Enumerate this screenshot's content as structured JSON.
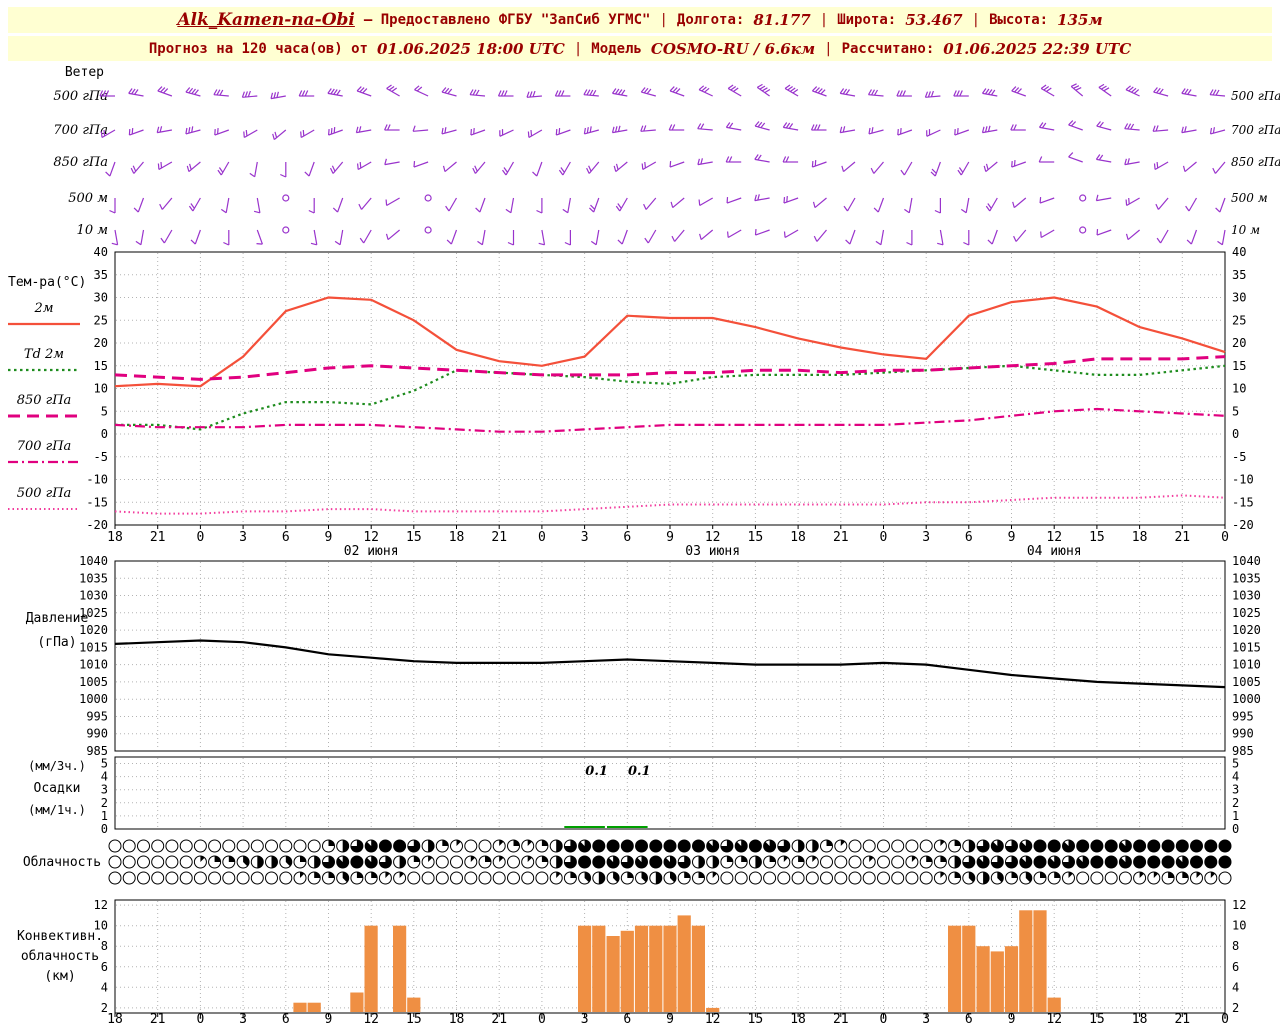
{
  "header": {
    "line1": {
      "station": "Alk_Kamen-na-Obi",
      "provider": "— Предоставлено ФГБУ \"ЗапСиб УГМС\"",
      "sep": "|",
      "lon_label": "Долгота:",
      "lon_value": "81.177",
      "lat_label": "Широта:",
      "lat_value": "53.467",
      "alt_label": "Высота:",
      "alt_value": "135м"
    },
    "line2": {
      "forecast_label": "Прогноз на 120 часа(ов) от",
      "forecast_value": "01.06.2025 18:00 UTC",
      "model_label": "Модель",
      "model_value": "COSMO-RU / 6.6км",
      "calc_label": "Рассчитано:",
      "calc_value": "01.06.2025 22:39 UTC"
    }
  },
  "axis": {
    "time_ticks": [
      "18",
      "21",
      "0",
      "3",
      "6",
      "9",
      "12",
      "15",
      "18",
      "21",
      "0",
      "3",
      "6",
      "9",
      "12",
      "15",
      "18",
      "21",
      "0",
      "3",
      "6",
      "9",
      "12",
      "15",
      "18",
      "21",
      "0"
    ],
    "date_labels": [
      {
        "text": "02 июня",
        "tick": 6
      },
      {
        "text": "03 июня",
        "tick": 14
      },
      {
        "text": "04 июня",
        "tick": 22
      }
    ]
  },
  "chart_data": [
    {
      "id": "wind",
      "type": "wind-barbs",
      "title": "Ветер",
      "color": "#9933cc",
      "series": [
        {
          "level": "500 гПа",
          "dir": [
            270,
            280,
            290,
            285,
            275,
            265,
            260,
            270,
            280,
            290,
            300,
            295,
            285,
            275,
            270,
            265,
            270,
            275,
            280,
            285,
            290,
            295,
            300,
            305,
            300,
            290,
            280,
            275,
            270,
            265,
            270,
            280,
            290,
            300,
            310,
            305,
            295,
            285,
            280,
            275
          ],
          "speed": [
            10,
            12,
            12,
            14,
            12,
            10,
            10,
            12,
            14,
            12,
            10,
            8,
            10,
            12,
            12,
            10,
            12,
            14,
            14,
            12,
            10,
            12,
            12,
            14,
            16,
            14,
            12,
            10,
            10,
            12,
            12,
            14,
            12,
            10,
            10,
            12,
            14,
            12,
            10,
            10
          ]
        },
        {
          "level": "700 гПа",
          "dir": [
            240,
            250,
            260,
            255,
            250,
            240,
            230,
            240,
            250,
            260,
            270,
            265,
            255,
            250,
            245,
            240,
            250,
            255,
            260,
            265,
            270,
            275,
            280,
            285,
            280,
            270,
            260,
            255,
            250,
            245,
            250,
            260,
            270,
            280,
            290,
            285,
            275,
            265,
            260,
            255
          ],
          "speed": [
            6,
            8,
            8,
            10,
            8,
            6,
            6,
            8,
            10,
            8,
            6,
            4,
            6,
            8,
            8,
            6,
            8,
            10,
            10,
            8,
            6,
            8,
            8,
            10,
            12,
            10,
            8,
            6,
            6,
            8,
            8,
            10,
            8,
            6,
            6,
            8,
            10,
            8,
            6,
            6
          ]
        },
        {
          "level": "850 гПа",
          "dir": [
            200,
            220,
            240,
            230,
            210,
            190,
            180,
            200,
            220,
            240,
            260,
            250,
            230,
            220,
            210,
            200,
            210,
            220,
            230,
            240,
            250,
            260,
            270,
            280,
            270,
            250,
            230,
            220,
            210,
            200,
            210,
            230,
            250,
            270,
            290,
            280,
            260,
            240,
            230,
            220
          ],
          "speed": [
            4,
            6,
            6,
            8,
            6,
            4,
            2,
            4,
            6,
            6,
            4,
            2,
            4,
            6,
            6,
            4,
            6,
            8,
            8,
            6,
            4,
            6,
            6,
            8,
            8,
            6,
            4,
            4,
            4,
            6,
            6,
            8,
            6,
            4,
            4,
            6,
            8,
            6,
            4,
            4
          ]
        },
        {
          "level": "500 м",
          "dir": [
            180,
            200,
            220,
            210,
            190,
            170,
            160,
            180,
            200,
            220,
            240,
            230,
            210,
            200,
            190,
            180,
            190,
            200,
            210,
            220,
            230,
            240,
            250,
            260,
            250,
            230,
            210,
            200,
            190,
            180,
            190,
            210,
            230,
            250,
            270,
            260,
            240,
            220,
            210,
            200
          ],
          "speed": [
            2,
            4,
            4,
            6,
            4,
            2,
            0,
            2,
            4,
            4,
            2,
            0,
            2,
            4,
            4,
            2,
            4,
            6,
            6,
            4,
            2,
            4,
            4,
            6,
            6,
            4,
            2,
            2,
            2,
            4,
            4,
            6,
            4,
            2,
            0,
            4,
            6,
            4,
            2,
            2
          ]
        },
        {
          "level": "10 м",
          "dir": [
            170,
            190,
            210,
            200,
            180,
            160,
            150,
            170,
            190,
            210,
            230,
            220,
            200,
            190,
            180,
            170,
            180,
            190,
            200,
            210,
            220,
            230,
            240,
            250,
            240,
            220,
            200,
            190,
            180,
            170,
            180,
            200,
            220,
            240,
            260,
            250,
            230,
            210,
            200,
            190
          ],
          "speed": [
            1,
            2,
            3,
            4,
            3,
            1,
            0,
            1,
            3,
            3,
            2,
            0,
            1,
            3,
            3,
            2,
            3,
            4,
            4,
            3,
            1,
            3,
            3,
            4,
            4,
            3,
            1,
            1,
            1,
            3,
            3,
            4,
            3,
            1,
            0,
            3,
            4,
            3,
            1,
            1
          ]
        }
      ]
    },
    {
      "id": "temp",
      "type": "line",
      "title": "Тем-ра(°C)",
      "ylim": [
        -20,
        40
      ],
      "yticks": [
        -20,
        -15,
        -10,
        -5,
        0,
        5,
        10,
        15,
        20,
        25,
        30,
        35,
        40
      ],
      "x_hours_step": 3,
      "series": [
        {
          "name": "2м",
          "color": "#f4503a",
          "style": "solid",
          "values": [
            10.5,
            11,
            10.5,
            17,
            27,
            30,
            29.5,
            25,
            18.5,
            16,
            15,
            17,
            26,
            25.5,
            25.5,
            23.5,
            21,
            19,
            17.5,
            16.5,
            26,
            29,
            30,
            28,
            23.5,
            21,
            18
          ]
        },
        {
          "name": "Td 2м",
          "color": "#1e8c1e",
          "style": "dotted",
          "values": [
            2,
            2,
            1,
            4.5,
            7,
            7,
            6.5,
            9.5,
            14,
            13.5,
            13,
            12.5,
            11.5,
            11,
            12.5,
            13,
            13,
            13,
            13.5,
            14,
            14.5,
            15,
            14,
            13,
            13,
            14,
            15
          ]
        },
        {
          "name": "850 гПа",
          "color": "#e0007f",
          "style": "dashed",
          "values": [
            13,
            12.5,
            12,
            12.5,
            13.5,
            14.5,
            15,
            14.5,
            14,
            13.5,
            13,
            13,
            13,
            13.5,
            13.5,
            14,
            14,
            13.5,
            14,
            14,
            14.5,
            15,
            15.5,
            16.5,
            16.5,
            16.5,
            17
          ]
        },
        {
          "name": "700 гПа",
          "color": "#e0007f",
          "style": "dashdot",
          "values": [
            2,
            1.5,
            1.5,
            1.5,
            2,
            2,
            2,
            1.5,
            1,
            0.5,
            0.5,
            1,
            1.5,
            2,
            2,
            2,
            2,
            2,
            2,
            2.5,
            3,
            4,
            5,
            5.5,
            5,
            4.5,
            4
          ]
        },
        {
          "name": "500 гПа",
          "color": "#f23b9d",
          "style": "dotfine",
          "values": [
            -17,
            -17.5,
            -17.5,
            -17,
            -17,
            -16.5,
            -16.5,
            -17,
            -17,
            -17,
            -17,
            -16.5,
            -16,
            -15.5,
            -15.5,
            -15.5,
            -15.5,
            -15.5,
            -15.5,
            -15,
            -15,
            -14.5,
            -14,
            -14,
            -14,
            -13.5,
            -14
          ]
        }
      ]
    },
    {
      "id": "pressure",
      "type": "line",
      "title_lines": [
        "Давление",
        "(гПа)"
      ],
      "ylim": [
        985,
        1040
      ],
      "yticks": [
        985,
        990,
        995,
        1000,
        1005,
        1010,
        1015,
        1020,
        1025,
        1030,
        1035,
        1040
      ],
      "series": [
        {
          "name": "Давление",
          "color": "#000000",
          "style": "solid",
          "values": [
            1016,
            1016.5,
            1017,
            1016.5,
            1015,
            1013,
            1012,
            1011,
            1010.5,
            1010.5,
            1010.5,
            1011,
            1011.5,
            1011,
            1010.5,
            1010,
            1010,
            1010,
            1010.5,
            1010,
            1008.5,
            1007,
            1006,
            1005,
            1004.5,
            1004,
            1003.5
          ]
        }
      ]
    },
    {
      "id": "precip",
      "type": "bar",
      "left_labels": [
        "(мм/3ч.)",
        "Осадки",
        "(мм/1ч.)"
      ],
      "ylim": [
        0,
        5.5
      ],
      "yticks": [
        0,
        1,
        2,
        3,
        4,
        5
      ],
      "color": "#00a000",
      "values_3h": [
        0,
        0,
        0,
        0,
        0,
        0,
        0,
        0,
        0,
        0,
        0,
        0.1,
        0.1,
        0,
        0,
        0,
        0,
        0,
        0,
        0,
        0,
        0,
        0,
        0,
        0,
        0,
        0
      ],
      "annotations": [
        {
          "text": "0.1",
          "tick": 11
        },
        {
          "text": "0.1",
          "tick": 12
        }
      ]
    },
    {
      "id": "cloud",
      "type": "cloud-cover",
      "title": "Облачность",
      "rows": [
        {
          "name": "row1",
          "oktas": [
            0,
            0,
            0,
            0,
            0,
            0,
            0,
            0,
            0,
            0,
            0,
            0,
            0,
            0,
            0,
            2,
            4,
            6,
            7,
            8,
            8,
            6,
            4,
            2,
            1,
            0,
            0,
            1,
            2,
            1,
            2,
            4,
            6,
            7,
            8,
            8,
            8,
            8,
            8,
            8,
            8,
            8,
            7,
            6,
            7,
            8,
            7,
            6,
            4,
            4,
            2,
            1,
            0,
            0,
            0,
            0,
            0,
            0,
            1,
            2,
            4,
            6,
            7,
            6,
            7,
            8,
            8,
            7,
            8,
            8,
            8,
            7,
            8,
            8,
            8,
            8,
            8,
            8,
            8
          ]
        },
        {
          "name": "row2",
          "oktas": [
            0,
            0,
            0,
            0,
            0,
            0,
            1,
            2,
            2,
            3,
            4,
            4,
            3,
            2,
            4,
            6,
            7,
            8,
            7,
            6,
            4,
            2,
            1,
            0,
            0,
            1,
            2,
            1,
            0,
            1,
            2,
            4,
            6,
            8,
            8,
            7,
            6,
            7,
            8,
            7,
            6,
            4,
            4,
            2,
            2,
            4,
            2,
            1,
            2,
            1,
            0,
            0,
            0,
            1,
            0,
            0,
            1,
            2,
            2,
            4,
            6,
            7,
            6,
            6,
            7,
            8,
            7,
            6,
            7,
            8,
            8,
            7,
            8,
            8,
            8,
            7,
            8,
            8,
            8
          ]
        },
        {
          "name": "row3",
          "oktas": [
            0,
            0,
            0,
            0,
            0,
            0,
            0,
            0,
            0,
            0,
            0,
            0,
            0,
            1,
            2,
            2,
            3,
            2,
            2,
            1,
            1,
            0,
            0,
            0,
            0,
            0,
            0,
            0,
            0,
            0,
            0,
            1,
            2,
            3,
            4,
            3,
            2,
            3,
            4,
            3,
            2,
            2,
            1,
            0,
            0,
            0,
            0,
            0,
            0,
            0,
            0,
            0,
            0,
            0,
            0,
            0,
            0,
            0,
            1,
            2,
            3,
            4,
            3,
            2,
            3,
            2,
            2,
            1,
            0,
            0,
            0,
            0,
            1,
            1,
            2,
            2,
            1,
            1,
            0
          ]
        }
      ]
    },
    {
      "id": "convective",
      "type": "bar",
      "left_labels": [
        "Конвективн.",
        "облачность",
        "(км)"
      ],
      "ylim": [
        1.5,
        12.5
      ],
      "yticks": [
        2,
        4,
        6,
        8,
        10,
        12
      ],
      "color": "#ef8f43",
      "values": [
        0,
        0,
        0,
        0,
        0,
        0,
        0,
        0,
        0,
        0,
        0,
        0,
        0,
        2.5,
        2.5,
        0,
        0,
        3.5,
        10,
        0,
        10,
        3,
        0,
        0,
        0,
        0,
        0,
        0,
        0,
        0,
        0,
        0,
        0,
        10,
        10,
        9,
        9.5,
        10,
        10,
        10,
        11,
        10,
        2,
        0,
        0,
        0,
        0,
        0,
        0,
        0,
        0,
        0,
        0,
        0,
        0,
        0,
        0,
        0,
        0,
        10,
        10,
        8,
        7.5,
        8,
        11.5,
        11.5,
        3,
        0,
        0,
        0,
        0,
        0,
        0,
        0,
        0,
        0,
        0,
        0,
        0
      ]
    }
  ]
}
